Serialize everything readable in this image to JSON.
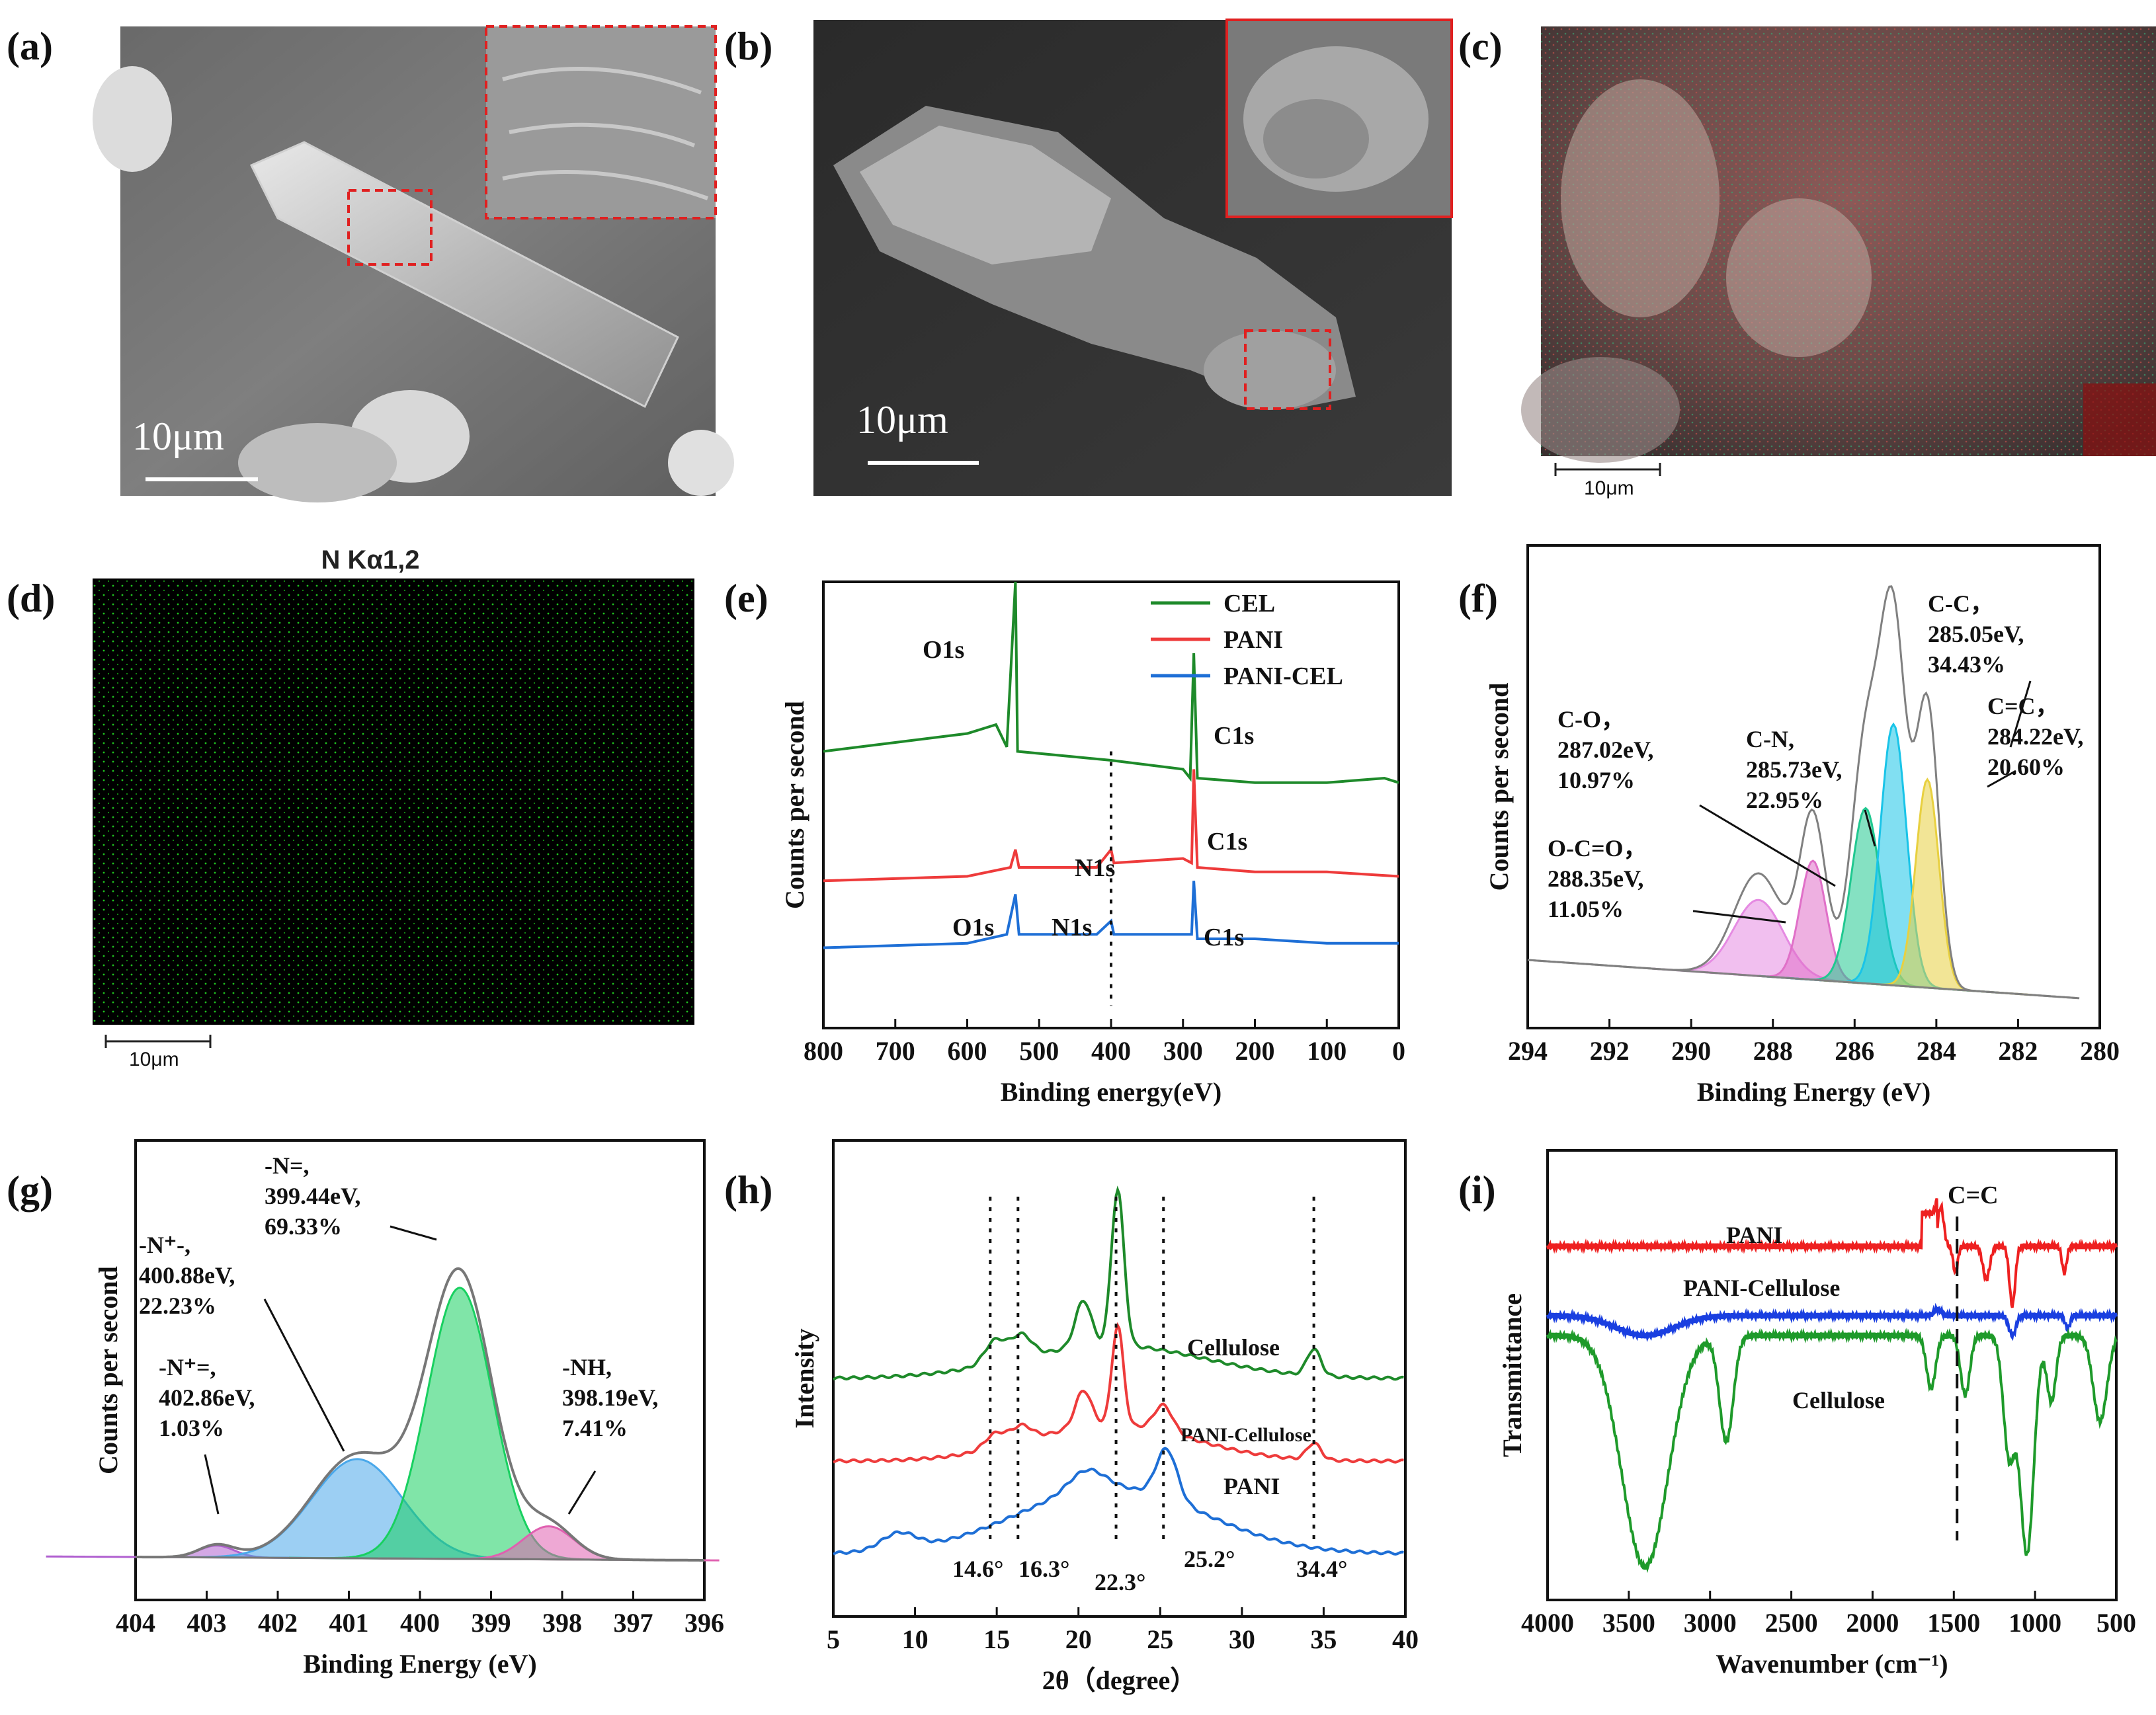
{
  "panels": {
    "a": {
      "label": "(a)",
      "scale_bar": "10μm"
    },
    "b": {
      "label": "(b)",
      "scale_bar": "10μm"
    },
    "c": {
      "label": "(c)",
      "scale_bar": "10μm"
    },
    "d": {
      "label": "(d)",
      "title": "N Kα1,2",
      "scale_bar": "10μm"
    },
    "e": {
      "label": "(e)"
    },
    "f": {
      "label": "(f)"
    },
    "g": {
      "label": "(g)"
    },
    "h": {
      "label": "(h)"
    },
    "i": {
      "label": "(i)"
    }
  },
  "colors": {
    "green": "#1e8a2a",
    "red": "#ee3b3b",
    "blue": "#1e6fd6",
    "gray": "#777777"
  },
  "chart_data": [
    {
      "id": "e",
      "type": "line",
      "xlabel": "Binding energy(eV)",
      "ylabel": "Counts per second",
      "xlim": [
        800,
        0
      ],
      "xticks": [
        800,
        700,
        600,
        500,
        400,
        300,
        200,
        100,
        0
      ],
      "series": [
        {
          "name": "CEL",
          "color": "#1e8a2a",
          "points": [
            [
              800,
              0.62
            ],
            [
              700,
              0.64
            ],
            [
              600,
              0.66
            ],
            [
              560,
              0.68
            ],
            [
              545,
              0.63
            ],
            [
              533,
              1.0
            ],
            [
              530,
              0.62
            ],
            [
              400,
              0.6
            ],
            [
              300,
              0.58
            ],
            [
              290,
              0.56
            ],
            [
              285,
              0.84
            ],
            [
              280,
              0.56
            ],
            [
              200,
              0.55
            ],
            [
              100,
              0.55
            ],
            [
              20,
              0.56
            ],
            [
              0,
              0.55
            ]
          ]
        },
        {
          "name": "PANI",
          "color": "#ee3b3b",
          "points": [
            [
              800,
              0.33
            ],
            [
              600,
              0.34
            ],
            [
              540,
              0.36
            ],
            [
              533,
              0.4
            ],
            [
              528,
              0.36
            ],
            [
              420,
              0.36
            ],
            [
              400,
              0.4
            ],
            [
              396,
              0.37
            ],
            [
              300,
              0.38
            ],
            [
              288,
              0.37
            ],
            [
              285,
              0.58
            ],
            [
              280,
              0.36
            ],
            [
              200,
              0.35
            ],
            [
              100,
              0.35
            ],
            [
              0,
              0.34
            ]
          ]
        },
        {
          "name": "PANI-CEL",
          "color": "#1e6fd6",
          "points": [
            [
              800,
              0.18
            ],
            [
              600,
              0.19
            ],
            [
              545,
              0.21
            ],
            [
              533,
              0.3
            ],
            [
              528,
              0.21
            ],
            [
              420,
              0.21
            ],
            [
              400,
              0.24
            ],
            [
              396,
              0.21
            ],
            [
              300,
              0.21
            ],
            [
              288,
              0.21
            ],
            [
              285,
              0.33
            ],
            [
              280,
              0.2
            ],
            [
              200,
              0.2
            ],
            [
              100,
              0.19
            ],
            [
              0,
              0.19
            ]
          ]
        }
      ],
      "peak_labels": [
        "O1s",
        "C1s",
        "N1s",
        "C1s",
        "O1s",
        "N1s",
        "C1s"
      ]
    },
    {
      "id": "f",
      "type": "area",
      "xlabel": "Binding Energy (eV)",
      "ylabel": "Counts per second",
      "xlim": [
        294,
        280
      ],
      "xticks": [
        294,
        292,
        290,
        288,
        286,
        284,
        282,
        280
      ],
      "envelope_peak_x": 285.05,
      "components": [
        {
          "name": "O-C=O",
          "center": 288.35,
          "percent": "11.05%",
          "color": "#e58ae2"
        },
        {
          "name": "C-O",
          "center": 287.02,
          "percent": "10.97%",
          "color": "#e070c8"
        },
        {
          "name": "C-N",
          "center": 285.73,
          "percent": "22.95%",
          "color": "#20c890"
        },
        {
          "name": "C-C",
          "center": 285.05,
          "percent": "34.43%",
          "color": "#19c4e8"
        },
        {
          "name": "C=C",
          "center": 284.22,
          "percent": "20.60%",
          "color": "#e8d040"
        }
      ],
      "annotations": [
        [
          "C-C，",
          "285.05eV,",
          "34.43%"
        ],
        [
          "C-O，",
          "287.02eV,",
          "10.97%"
        ],
        [
          "C-N,",
          "285.73eV,",
          "22.95%"
        ],
        [
          "C=C，",
          "284.22eV,",
          "20.60%"
        ],
        [
          "O-C=O，",
          "288.35eV,",
          "11.05%"
        ]
      ]
    },
    {
      "id": "g",
      "type": "area",
      "xlabel": "Binding Energy (eV)",
      "ylabel": "Counts per second",
      "xlim": [
        404,
        396
      ],
      "xticks": [
        404,
        403,
        402,
        401,
        400,
        399,
        398,
        397,
        396
      ],
      "components": [
        {
          "name": "-N+=",
          "center": 402.86,
          "percent": "1.03%",
          "color": "#b060d0"
        },
        {
          "name": "-N+-",
          "center": 400.88,
          "percent": "22.23%",
          "color": "#4aa8ea"
        },
        {
          "name": "-N=",
          "center": 399.44,
          "percent": "69.33%",
          "color": "#18d060"
        },
        {
          "name": "-NH",
          "center": 398.19,
          "percent": "7.41%",
          "color": "#e060b0"
        }
      ],
      "annotations": [
        [
          "-N=,",
          "399.44eV,",
          "69.33%"
        ],
        [
          "-N⁺-,",
          "400.88eV,",
          "22.23%"
        ],
        [
          "-N⁺=,",
          "402.86eV,",
          "1.03%"
        ],
        [
          "-NH,",
          "398.19eV,",
          "7.41%"
        ]
      ]
    },
    {
      "id": "h",
      "type": "line",
      "xlabel": "2θ（degree）",
      "ylabel": "Intensity",
      "xlim": [
        5,
        40
      ],
      "xticks": [
        5,
        10,
        15,
        20,
        25,
        30,
        35,
        40
      ],
      "series": [
        {
          "name": "Cellulose",
          "color": "#1e8a2a"
        },
        {
          "name": "PANI-Cellulose",
          "color": "#ee3b3b"
        },
        {
          "name": "PANI",
          "color": "#1e6fd6"
        }
      ],
      "guides": [
        14.6,
        16.3,
        22.3,
        25.2,
        34.4
      ],
      "guide_labels": [
        "14.6°",
        "16.3°",
        "22.3°",
        "25.2°",
        "34.4°"
      ]
    },
    {
      "id": "i",
      "type": "line",
      "xlabel": "Wavenumber (cm⁻¹)",
      "ylabel": "Transmittance",
      "xlim": [
        4000,
        500
      ],
      "xticks": [
        4000,
        3500,
        3000,
        2500,
        2000,
        1500,
        1000,
        500
      ],
      "series": [
        {
          "name": "PANI",
          "color": "#ee2020"
        },
        {
          "name": "PANI-Cellulose",
          "color": "#1a3fe0"
        },
        {
          "name": "Cellulose",
          "color": "#1e9a2a"
        }
      ],
      "guide_label": "C=C",
      "guide_x": 1480
    }
  ]
}
